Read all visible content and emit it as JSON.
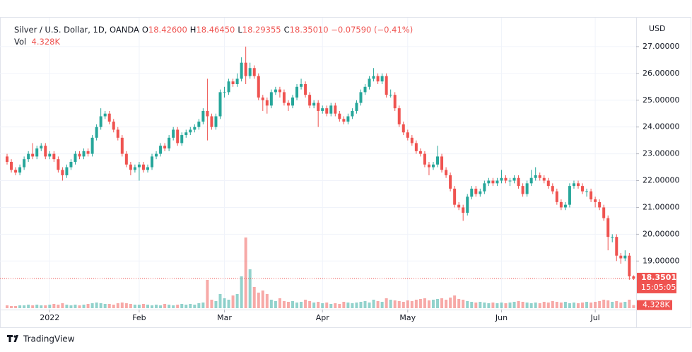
{
  "chart_data": {
    "type": "candlestick",
    "title": "Silver / U.S. Dollar, 1D, OANDA",
    "ohlc_legend": [
      {
        "label": "O",
        "text": "18.42600"
      },
      {
        "label": "H",
        "text": "18.46450"
      },
      {
        "label": "L",
        "text": "18.29355"
      },
      {
        "label": "C",
        "text": "18.35010"
      }
    ],
    "change_label": "−0.07590 (−0.41%)",
    "volume_title": "Vol",
    "volume_label": "4.328K",
    "y_axis_label": "USD",
    "last_price": 18.3501,
    "last_price_label": "18.35010",
    "countdown": "15:05:05",
    "brand": "TradingView",
    "up_color": "#26a69a",
    "down_color": "#ef5350",
    "grid": true,
    "ylim": [
      16.74,
      28.0
    ],
    "yticks": [
      {
        "value": 19,
        "label": "19.00000"
      },
      {
        "value": 20,
        "label": "20.00000"
      },
      {
        "value": 21,
        "label": "21.00000"
      },
      {
        "value": 22,
        "label": "22.00000"
      },
      {
        "value": 23,
        "label": "23.00000"
      },
      {
        "value": 24,
        "label": "24.00000"
      },
      {
        "value": 25,
        "label": "25.00000"
      },
      {
        "value": 26,
        "label": "26.00000"
      },
      {
        "value": 27,
        "label": "27.00000"
      }
    ],
    "xlim": [
      -1.66,
      147.6
    ],
    "xticks": [
      {
        "value": 10,
        "label": "2022"
      },
      {
        "value": 31,
        "label": "Feb"
      },
      {
        "value": 51,
        "label": "Mar"
      },
      {
        "value": 74,
        "label": "Apr"
      },
      {
        "value": 94,
        "label": "May"
      },
      {
        "value": 116,
        "label": "Jun"
      },
      {
        "value": 138,
        "label": "Jul"
      }
    ],
    "volume_lim": [
      0,
      110
    ],
    "open": [
      22.9,
      22.7,
      22.4,
      22.3,
      22.5,
      22.8,
      23.0,
      22.9,
      23.2,
      23.3,
      22.9,
      23.0,
      22.8,
      22.4,
      22.2,
      22.5,
      22.7,
      23.0,
      22.9,
      23.1,
      23.0,
      23.6,
      24.0,
      24.4,
      24.5,
      24.2,
      23.9,
      23.6,
      23.0,
      22.6,
      22.4,
      22.5,
      22.6,
      22.4,
      22.5,
      22.9,
      23.0,
      23.3,
      23.2,
      23.6,
      23.9,
      23.4,
      23.7,
      23.8,
      23.9,
      24.0,
      24.2,
      24.6,
      24.4,
      24.0,
      24.4,
      25.3,
      25.3,
      25.7,
      25.6,
      25.8,
      26.4,
      25.9,
      26.2,
      25.9,
      25.1,
      25.0,
      24.8,
      25.3,
      25.4,
      25.3,
      24.9,
      24.8,
      25.1,
      25.5,
      25.6,
      25.2,
      24.8,
      24.9,
      24.6,
      24.7,
      24.5,
      24.8,
      24.5,
      24.3,
      24.2,
      24.4,
      24.6,
      24.9,
      25.3,
      25.5,
      25.8,
      25.9,
      25.7,
      25.9,
      25.2,
      25.2,
      24.7,
      24.1,
      23.8,
      23.6,
      23.4,
      23.1,
      23.0,
      22.6,
      22.5,
      22.6,
      22.9,
      22.4,
      22.2,
      21.7,
      21.1,
      21.0,
      20.8,
      21.4,
      21.7,
      21.5,
      21.6,
      21.9,
      22.0,
      21.9,
      22.0,
      22.1,
      22.0,
      22.0,
      22.1,
      21.8,
      21.5,
      21.9,
      22.1,
      22.2,
      22.1,
      22.0,
      21.8,
      21.6,
      21.2,
      21.0,
      21.1,
      21.8,
      21.9,
      21.8,
      21.6,
      21.6,
      21.3,
      21.2,
      21.0,
      20.6,
      19.9,
      19.9,
      19.2,
      19.1,
      19.2,
      18.426
    ],
    "high": [
      23.0,
      22.8,
      22.5,
      22.6,
      22.9,
      23.1,
      23.4,
      23.3,
      23.4,
      23.4,
      23.1,
      23.1,
      22.9,
      22.5,
      22.6,
      22.8,
      23.1,
      23.1,
      23.2,
      23.2,
      23.7,
      24.1,
      24.7,
      24.6,
      24.6,
      24.3,
      24.0,
      23.7,
      23.1,
      22.7,
      22.6,
      22.7,
      22.7,
      22.6,
      23.0,
      23.1,
      23.4,
      23.4,
      23.7,
      24.0,
      24.0,
      23.8,
      23.9,
      24.0,
      24.1,
      24.3,
      24.7,
      25.8,
      24.5,
      24.5,
      25.4,
      25.5,
      25.8,
      25.8,
      26.0,
      26.6,
      27.0,
      26.4,
      26.3,
      26.0,
      25.2,
      25.1,
      25.4,
      25.5,
      25.5,
      25.4,
      25.0,
      25.2,
      25.6,
      25.8,
      25.7,
      25.3,
      25.0,
      25.0,
      24.8,
      24.8,
      24.9,
      24.9,
      24.6,
      24.4,
      24.5,
      24.7,
      25.0,
      25.4,
      25.6,
      25.9,
      26.2,
      26.0,
      26.0,
      26.0,
      25.4,
      25.3,
      24.8,
      24.2,
      23.9,
      23.7,
      23.5,
      23.2,
      23.1,
      22.7,
      22.7,
      23.3,
      23.0,
      22.5,
      22.3,
      21.8,
      21.2,
      21.1,
      21.5,
      21.8,
      21.8,
      21.7,
      22.0,
      22.1,
      22.1,
      22.1,
      22.4,
      22.2,
      22.1,
      22.2,
      22.2,
      21.9,
      22.0,
      22.4,
      22.5,
      22.3,
      22.2,
      22.1,
      21.9,
      21.7,
      21.3,
      21.2,
      21.9,
      22.0,
      22.0,
      21.9,
      21.7,
      21.7,
      21.4,
      21.3,
      21.1,
      20.7,
      20.0,
      20.0,
      19.3,
      19.4,
      19.3,
      18.4645
    ],
    "low": [
      22.6,
      22.3,
      22.2,
      22.2,
      22.4,
      22.7,
      22.8,
      22.8,
      23.1,
      22.8,
      22.8,
      22.7,
      22.3,
      22.0,
      22.1,
      22.4,
      22.6,
      22.8,
      22.8,
      22.9,
      22.9,
      23.5,
      23.9,
      24.3,
      24.1,
      23.8,
      23.5,
      22.9,
      22.5,
      22.2,
      22.3,
      22.0,
      22.3,
      22.3,
      22.4,
      22.8,
      22.9,
      23.1,
      23.1,
      23.5,
      23.3,
      23.3,
      23.6,
      23.7,
      23.8,
      23.9,
      24.1,
      23.5,
      23.9,
      23.9,
      24.3,
      25.1,
      25.2,
      25.5,
      25.5,
      25.7,
      25.6,
      25.8,
      25.8,
      25.0,
      24.6,
      24.5,
      24.7,
      25.2,
      25.1,
      24.8,
      24.6,
      24.7,
      25.0,
      25.4,
      25.1,
      24.7,
      24.7,
      24.0,
      24.5,
      24.4,
      24.4,
      24.4,
      24.2,
      24.1,
      24.1,
      24.3,
      24.5,
      24.8,
      25.2,
      25.4,
      25.7,
      25.6,
      25.6,
      25.1,
      25.1,
      24.6,
      24.0,
      23.7,
      23.5,
      23.3,
      23.0,
      22.9,
      22.5,
      22.2,
      22.4,
      22.5,
      22.3,
      22.1,
      21.6,
      21.0,
      20.9,
      20.5,
      20.7,
      21.3,
      21.4,
      21.4,
      21.5,
      21.8,
      21.8,
      21.8,
      21.9,
      21.9,
      21.8,
      21.9,
      21.7,
      21.4,
      21.4,
      21.8,
      22.0,
      22.0,
      21.9,
      21.7,
      21.5,
      21.1,
      20.9,
      20.9,
      21.0,
      21.7,
      21.7,
      21.5,
      21.4,
      21.2,
      21.0,
      20.9,
      20.5,
      19.4,
      19.7,
      19.0,
      18.9,
      19.0,
      18.3,
      18.29355
    ],
    "close": [
      22.7,
      22.4,
      22.3,
      22.5,
      22.8,
      23.0,
      22.9,
      23.2,
      23.3,
      22.9,
      23.0,
      22.8,
      22.4,
      22.2,
      22.5,
      22.7,
      23.0,
      22.9,
      23.1,
      23.0,
      23.6,
      24.0,
      24.4,
      24.5,
      24.2,
      23.9,
      23.6,
      23.0,
      22.6,
      22.4,
      22.5,
      22.6,
      22.4,
      22.5,
      22.9,
      23.0,
      23.3,
      23.2,
      23.6,
      23.9,
      23.4,
      23.7,
      23.8,
      23.9,
      24.0,
      24.2,
      24.6,
      24.4,
      24.0,
      24.4,
      25.3,
      25.3,
      25.7,
      25.6,
      25.8,
      26.4,
      25.9,
      26.2,
      25.9,
      25.1,
      25.0,
      24.8,
      25.3,
      25.4,
      25.3,
      24.9,
      24.8,
      25.1,
      25.5,
      25.6,
      25.2,
      24.8,
      24.9,
      24.6,
      24.7,
      24.5,
      24.8,
      24.5,
      24.3,
      24.2,
      24.4,
      24.6,
      24.9,
      25.3,
      25.5,
      25.8,
      25.9,
      25.7,
      25.9,
      25.2,
      25.2,
      24.7,
      24.1,
      23.8,
      23.6,
      23.4,
      23.1,
      23.0,
      22.6,
      22.5,
      22.6,
      22.9,
      22.4,
      22.2,
      21.7,
      21.1,
      21.0,
      20.8,
      21.4,
      21.7,
      21.5,
      21.6,
      21.9,
      22.0,
      21.9,
      22.0,
      22.1,
      22.0,
      22.0,
      22.1,
      21.8,
      21.5,
      21.9,
      22.1,
      22.2,
      22.1,
      22.0,
      21.8,
      21.6,
      21.2,
      21.0,
      21.1,
      21.8,
      21.9,
      21.8,
      21.6,
      21.6,
      21.3,
      21.2,
      21.0,
      20.6,
      19.9,
      19.9,
      19.2,
      19.1,
      19.2,
      18.43,
      18.3501
    ],
    "volume": [
      4,
      3,
      3,
      4,
      4,
      5,
      4,
      5,
      4,
      4,
      5,
      6,
      5,
      7,
      5,
      4,
      5,
      4,
      5,
      6,
      7,
      8,
      7,
      6,
      6,
      5,
      7,
      8,
      7,
      6,
      5,
      5,
      6,
      5,
      4,
      5,
      4,
      6,
      5,
      4,
      5,
      6,
      5,
      6,
      5,
      7,
      8,
      40,
      12,
      10,
      20,
      14,
      12,
      18,
      20,
      45,
      100,
      55,
      30,
      22,
      25,
      20,
      12,
      10,
      14,
      10,
      9,
      10,
      8,
      9,
      12,
      10,
      8,
      9,
      7,
      8,
      6,
      7,
      6,
      9,
      8,
      7,
      8,
      9,
      10,
      8,
      12,
      10,
      9,
      14,
      12,
      11,
      10,
      9,
      11,
      10,
      12,
      13,
      14,
      11,
      12,
      13,
      14,
      12,
      15,
      18,
      13,
      12,
      10,
      9,
      8,
      9,
      8,
      7,
      8,
      7,
      8,
      7,
      8,
      9,
      10,
      9,
      8,
      7,
      8,
      7,
      9,
      8,
      10,
      9,
      8,
      9,
      7,
      8,
      7,
      8,
      9,
      8,
      9,
      10,
      12,
      11,
      9,
      10,
      8,
      9,
      12,
      4.328
    ]
  }
}
